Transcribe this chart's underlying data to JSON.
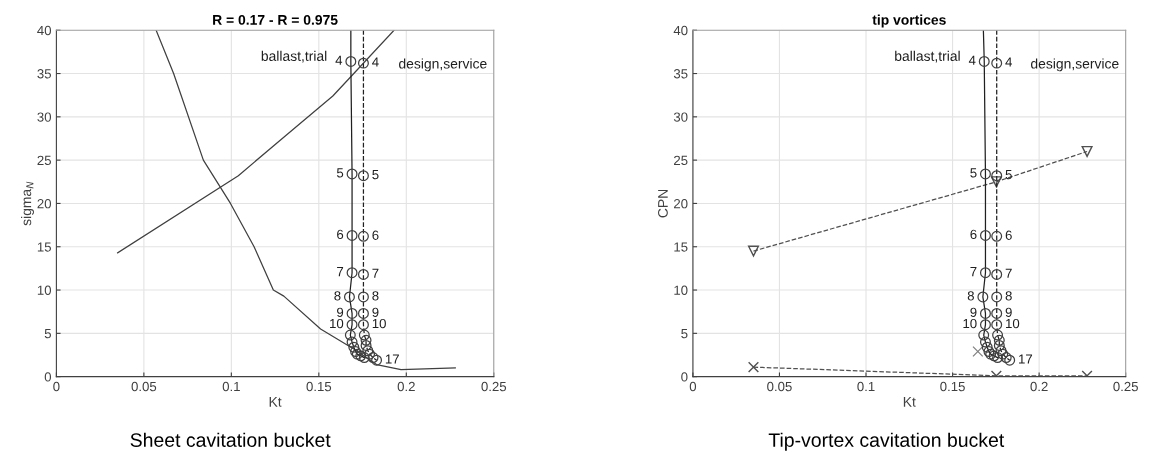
{
  "chart_data": [
    {
      "type": "line",
      "title": "R = 0.17 - R = 0.975",
      "xlabel": "Kt",
      "ylabel": "sigma$_{N}$",
      "xlim": [
        0,
        0.25
      ],
      "ylim": [
        0,
        40
      ],
      "xticks": [
        0,
        0.05,
        0.1,
        0.15,
        0.2,
        0.25
      ],
      "yticks": [
        0,
        5,
        10,
        15,
        20,
        25,
        30,
        35,
        40
      ],
      "grid": true,
      "annotations": [
        {
          "text": "ballast,trial",
          "x": 0.1683,
          "y": 36.4
        },
        "design,service",
        {
          "text": "4",
          "x": 0.1683,
          "y": 36.4
        },
        {
          "text": "5",
          "x": 0.169,
          "y": 23.4
        },
        {
          "text": "6",
          "x": 0.169,
          "y": 16.3
        },
        {
          "text": "7",
          "x": 0.169,
          "y": 12.0
        },
        {
          "text": "8",
          "x": 0.1675,
          "y": 9.2
        },
        {
          "text": "9",
          "x": 0.169,
          "y": 7.3
        },
        {
          "text": "10",
          "x": 0.169,
          "y": 6.0
        },
        {
          "text": "4",
          "x": 0.1755,
          "y": 36.2
        },
        {
          "text": "5",
          "x": 0.1755,
          "y": 23.2
        },
        {
          "text": "6",
          "x": 0.1755,
          "y": 16.2
        },
        {
          "text": "7",
          "x": 0.1755,
          "y": 11.8
        },
        {
          "text": "8",
          "x": 0.1755,
          "y": 9.2
        },
        {
          "text": "9",
          "x": 0.1755,
          "y": 7.3
        },
        {
          "text": "10",
          "x": 0.1755,
          "y": 6.0
        },
        {
          "text": "17",
          "x": 0.183,
          "y": 1.9
        },
        "Sheet cavitation bucket"
      ],
      "series": [
        {
          "type": "line",
          "color": "#404040",
          "line_style": "solid",
          "x": [
            0.057,
            0.067,
            0.084,
            0.0995,
            0.113,
            0.124,
            0.13,
            0.151,
            0.17,
            0.183,
            0.197,
            0.228
          ],
          "values": [
            40,
            35,
            25,
            20,
            15,
            10,
            9.3,
            5.5,
            3.2,
            1.4,
            0.8,
            1.0
          ]
        },
        {
          "type": "line",
          "color": "#404040",
          "line_style": "solid",
          "x": [
            0.035,
            0.104,
            0.132,
            0.158,
            0.17,
            0.193
          ],
          "values": [
            14.3,
            23.2,
            28.0,
            32.4,
            35.0,
            40
          ]
        },
        {
          "type": "line",
          "color": "#202020",
          "line_style": "solid",
          "x": [
            0.1683,
            0.1683,
            0.169,
            0.169,
            0.169,
            0.1675,
            0.169,
            0.169,
            0.168,
            0.169,
            0.17,
            0.171,
            0.172,
            0.174,
            0.176
          ],
          "values": [
            40,
            36.4,
            23.4,
            16.3,
            12.0,
            9.2,
            7.3,
            6.0,
            4.8,
            4.0,
            3.4,
            2.9,
            2.6,
            2.4,
            2.2
          ]
        },
        {
          "type": "line",
          "color": "#202020",
          "line_style": "dashed",
          "x": [
            0.1755,
            0.1755,
            0.1755,
            0.1755,
            0.1755,
            0.1755,
            0.1755,
            0.1755,
            0.176,
            0.177,
            0.177,
            0.178,
            0.179,
            0.181,
            0.183
          ],
          "values": [
            40,
            36.2,
            23.2,
            16.2,
            11.8,
            9.2,
            7.3,
            6.0,
            4.8,
            4.2,
            3.6,
            3.0,
            2.6,
            2.2,
            1.9
          ]
        },
        {
          "type": "scatter",
          "marker": "circle",
          "color": "#404040",
          "x": [
            0.1683,
            0.169,
            0.169,
            0.169,
            0.1675,
            0.169,
            0.169,
            0.168,
            0.169,
            0.17,
            0.171,
            0.172,
            0.174,
            0.176
          ],
          "values": [
            36.4,
            23.4,
            16.3,
            12.0,
            9.2,
            7.3,
            6.0,
            4.8,
            4.0,
            3.4,
            2.9,
            2.6,
            2.4,
            2.2
          ]
        },
        {
          "type": "scatter",
          "marker": "circle",
          "color": "#404040",
          "x": [
            0.1755,
            0.1755,
            0.1755,
            0.1755,
            0.1755,
            0.1755,
            0.1755,
            0.176,
            0.177,
            0.177,
            0.178,
            0.179,
            0.181,
            0.183
          ],
          "values": [
            36.2,
            23.2,
            16.2,
            11.8,
            9.2,
            7.3,
            6.0,
            4.8,
            4.2,
            3.6,
            3.0,
            2.6,
            2.2,
            1.9
          ]
        }
      ]
    },
    {
      "type": "line",
      "title": "tip vortices",
      "xlabel": "Kt",
      "ylabel": "CPN",
      "xlim": [
        0,
        0.25
      ],
      "ylim": [
        0,
        40
      ],
      "xticks": [
        0,
        0.05,
        0.1,
        0.15,
        0.2,
        0.25
      ],
      "yticks": [
        0,
        5,
        10,
        15,
        20,
        25,
        30,
        35,
        40
      ],
      "grid": true,
      "annotations": [
        {
          "text": "ballast,trial",
          "x": 0.1683,
          "y": 36.4
        },
        "design,service",
        {
          "text": "4",
          "x": 0.1683,
          "y": 36.4
        },
        {
          "text": "5",
          "x": 0.169,
          "y": 23.4
        },
        {
          "text": "6",
          "x": 0.169,
          "y": 16.3
        },
        {
          "text": "7",
          "x": 0.169,
          "y": 12.0
        },
        {
          "text": "8",
          "x": 0.1675,
          "y": 9.2
        },
        {
          "text": "9",
          "x": 0.169,
          "y": 7.3
        },
        {
          "text": "10",
          "x": 0.169,
          "y": 6.0
        },
        {
          "text": "4",
          "x": 0.1755,
          "y": 36.2
        },
        {
          "text": "5",
          "x": 0.1755,
          "y": 23.2
        },
        {
          "text": "6",
          "x": 0.1755,
          "y": 16.2
        },
        {
          "text": "7",
          "x": 0.1755,
          "y": 11.8
        },
        {
          "text": "8",
          "x": 0.1755,
          "y": 9.2
        },
        {
          "text": "9",
          "x": 0.1755,
          "y": 7.3
        },
        {
          "text": "10",
          "x": 0.1755,
          "y": 6.0
        },
        {
          "text": "17",
          "x": 0.183,
          "y": 1.9
        },
        "Tip-vortex cavitation bucket"
      ],
      "series": [
        {
          "type": "line",
          "color": "#505050",
          "line_style": "dashed",
          "marker": "triangle",
          "x": [
            0.035,
            0.1753,
            0.2277
          ],
          "values": [
            14.5,
            22.5,
            26.0
          ]
        },
        {
          "type": "line",
          "color": "#505050",
          "line_style": "dashed",
          "marker": "cross",
          "x": [
            0.035,
            0.1753,
            0.2277
          ],
          "values": [
            1.1,
            0.1,
            0.1
          ]
        },
        {
          "type": "scatter",
          "marker": "cross",
          "color": "#808080",
          "x": [
            0.1646
          ],
          "values": [
            2.9
          ]
        },
        {
          "type": "line",
          "color": "#202020",
          "line_style": "solid",
          "x": [
            0.1678,
            0.1683,
            0.169,
            0.169,
            0.169,
            0.1675,
            0.169,
            0.169,
            0.168,
            0.169,
            0.17,
            0.171,
            0.172,
            0.174,
            0.176
          ],
          "values": [
            40,
            36.4,
            23.4,
            16.3,
            12.0,
            9.2,
            7.3,
            6.0,
            4.8,
            4.0,
            3.4,
            2.9,
            2.6,
            2.4,
            2.2
          ]
        },
        {
          "type": "line",
          "color": "#202020",
          "line_style": "dashed",
          "x": [
            0.1755,
            0.1755,
            0.1755,
            0.1755,
            0.1755,
            0.1755,
            0.1755,
            0.1755,
            0.176,
            0.177,
            0.177,
            0.178,
            0.179,
            0.181,
            0.183
          ],
          "values": [
            40,
            36.2,
            23.2,
            16.2,
            11.8,
            9.2,
            7.3,
            6.0,
            4.8,
            4.2,
            3.6,
            3.0,
            2.6,
            2.2,
            1.9
          ]
        },
        {
          "type": "scatter",
          "marker": "circle",
          "color": "#404040",
          "x": [
            0.1683,
            0.169,
            0.169,
            0.169,
            0.1675,
            0.169,
            0.169,
            0.168,
            0.169,
            0.17,
            0.171,
            0.172,
            0.174,
            0.176
          ],
          "values": [
            36.4,
            23.4,
            16.3,
            12.0,
            9.2,
            7.3,
            6.0,
            4.8,
            4.0,
            3.4,
            2.9,
            2.6,
            2.4,
            2.2
          ]
        },
        {
          "type": "scatter",
          "marker": "circle",
          "color": "#404040",
          "x": [
            0.1755,
            0.1755,
            0.1755,
            0.1755,
            0.1755,
            0.1755,
            0.1755,
            0.176,
            0.177,
            0.177,
            0.178,
            0.179,
            0.181,
            0.183
          ],
          "values": [
            36.2,
            23.2,
            16.2,
            11.8,
            9.2,
            7.3,
            6.0,
            4.8,
            4.2,
            3.6,
            3.0,
            2.6,
            2.2,
            1.9
          ]
        }
      ]
    }
  ]
}
